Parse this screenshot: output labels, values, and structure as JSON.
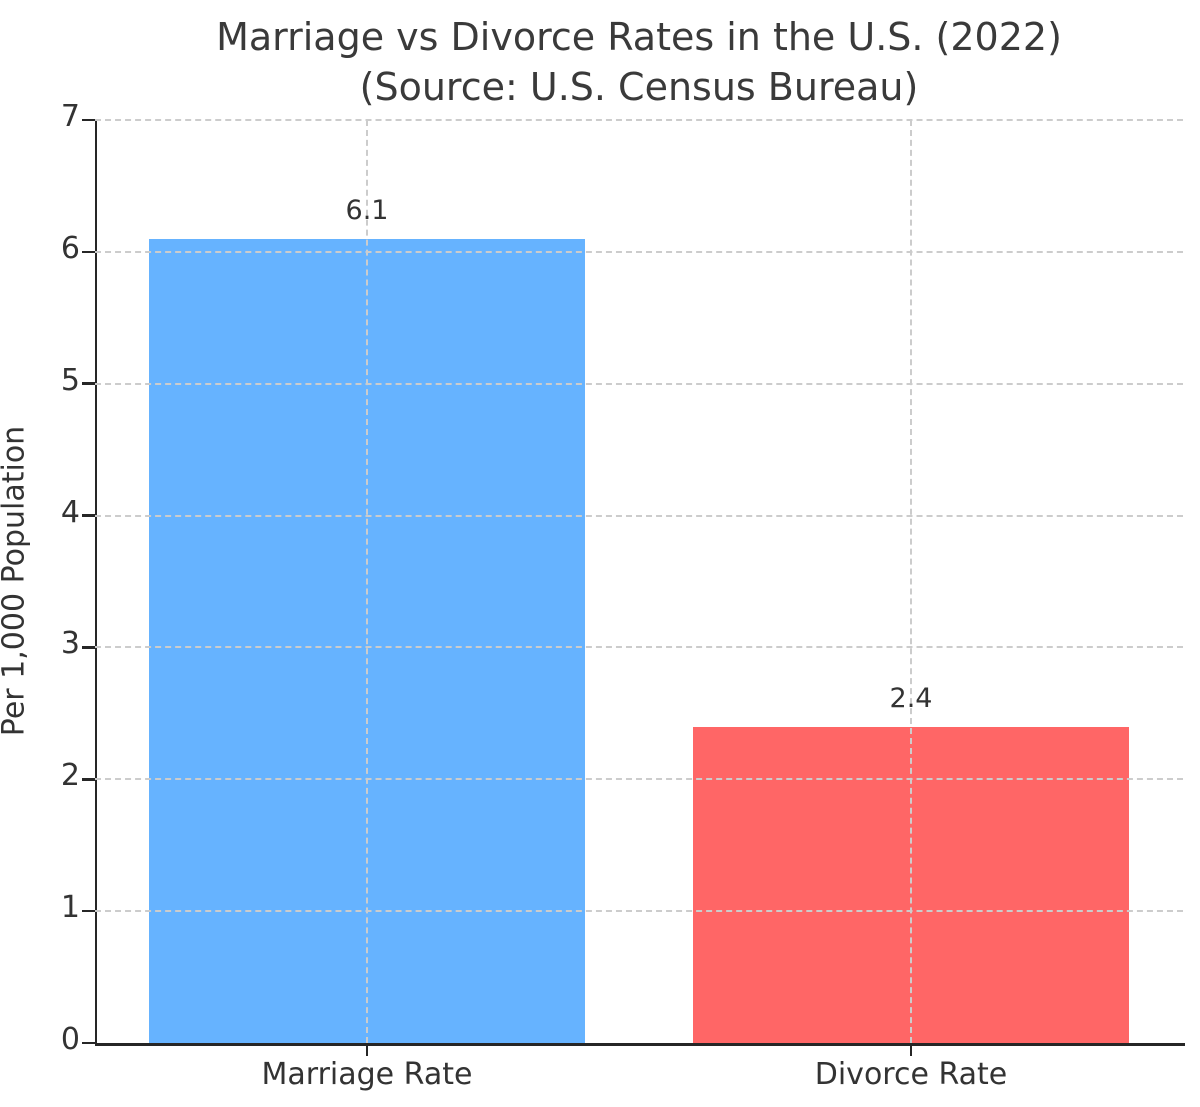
{
  "title": {
    "line1": "Marriage vs Divorce Rates in the U.S. (2022)",
    "line2": "(Source: U.S. Census Bureau)"
  },
  "chart_data": {
    "type": "bar",
    "title": "Marriage vs Divorce Rates in the U.S. (2022) (Source: U.S. Census Bureau)",
    "categories": [
      "Marriage Rate",
      "Divorce Rate"
    ],
    "values": [
      6.1,
      2.4
    ],
    "value_labels": [
      "6.1",
      "2.4"
    ],
    "bar_colors": [
      "#66b3ff",
      "#ff6666"
    ],
    "xlabel": "",
    "ylabel": "Per 1,000 Population",
    "ylim": [
      0,
      7
    ],
    "yticks": [
      0,
      1,
      2,
      3,
      4,
      5,
      6,
      7
    ],
    "ytick_labels": [
      "0",
      "1",
      "2",
      "3",
      "4",
      "5",
      "6",
      "7"
    ],
    "grid": "dashed",
    "grid_over_bars": true,
    "legend": "none",
    "grid_color": "#cccccc",
    "axis_color": "#262626",
    "text_color": "#333333",
    "title_color": "#3a3a3a",
    "bar_width_fraction": 0.8
  }
}
